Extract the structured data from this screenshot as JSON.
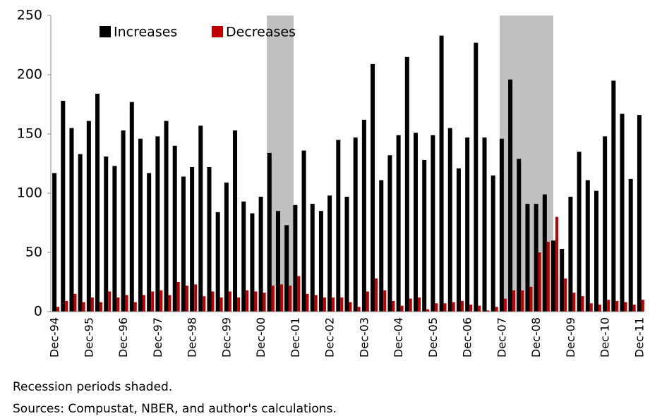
{
  "chart_data": {
    "type": "bar",
    "categories": [
      "Dec-94",
      null,
      null,
      null,
      "Dec-95",
      null,
      null,
      null,
      "Dec-96",
      null,
      null,
      null,
      "Dec-97",
      null,
      null,
      null,
      "Dec-98",
      null,
      null,
      null,
      "Dec-99",
      null,
      null,
      null,
      "Dec-00",
      null,
      null,
      null,
      "Dec-01",
      null,
      null,
      null,
      "Dec-02",
      null,
      null,
      null,
      "Dec-03",
      null,
      null,
      null,
      "Dec-04",
      null,
      null,
      null,
      "Dec-05",
      null,
      null,
      null,
      "Dec-06",
      null,
      null,
      null,
      "Dec-07",
      null,
      null,
      null,
      "Dec-08",
      null,
      null,
      null,
      "Dec-09",
      null,
      null,
      null,
      "Dec-10",
      null,
      null,
      null,
      "Dec-11"
    ],
    "series": [
      {
        "name": "Increases",
        "color": "#000000",
        "values": [
          117,
          178,
          155,
          133,
          161,
          184,
          131,
          123,
          153,
          177,
          146,
          117,
          148,
          161,
          140,
          114,
          122,
          157,
          122,
          84,
          109,
          153,
          93,
          83,
          97,
          134,
          85,
          73,
          90,
          136,
          91,
          85,
          98,
          145,
          97,
          147,
          162,
          209,
          111,
          132,
          149,
          215,
          151,
          128,
          149,
          233,
          155,
          121,
          147,
          227,
          147,
          115,
          146,
          196,
          129,
          91,
          91,
          99,
          60,
          53,
          97,
          135,
          111,
          102,
          148,
          195,
          167,
          112,
          166
        ]
      },
      {
        "name": "Decreases",
        "color": "#c00000",
        "values": [
          4,
          9,
          15,
          8,
          12,
          8,
          17,
          12,
          14,
          8,
          14,
          17,
          18,
          14,
          25,
          22,
          23,
          13,
          17,
          12,
          17,
          12,
          18,
          17,
          16,
          22,
          23,
          22,
          30,
          15,
          14,
          12,
          12,
          12,
          8,
          4,
          17,
          28,
          18,
          9,
          5,
          11,
          12,
          2,
          7,
          7,
          8,
          9,
          6,
          5,
          1,
          4,
          11,
          18,
          18,
          21,
          50,
          59,
          80,
          28,
          16,
          13,
          7,
          6,
          10,
          9,
          8,
          6,
          10
        ]
      }
    ],
    "ylim": [
      0,
      250
    ],
    "yticks": [
      0,
      50,
      100,
      150,
      200,
      250
    ],
    "grid": false,
    "legend": "top-left",
    "notes": [
      "Recession periods shaded.",
      "Sources: Compustat, NBER, and author's calculations."
    ]
  }
}
